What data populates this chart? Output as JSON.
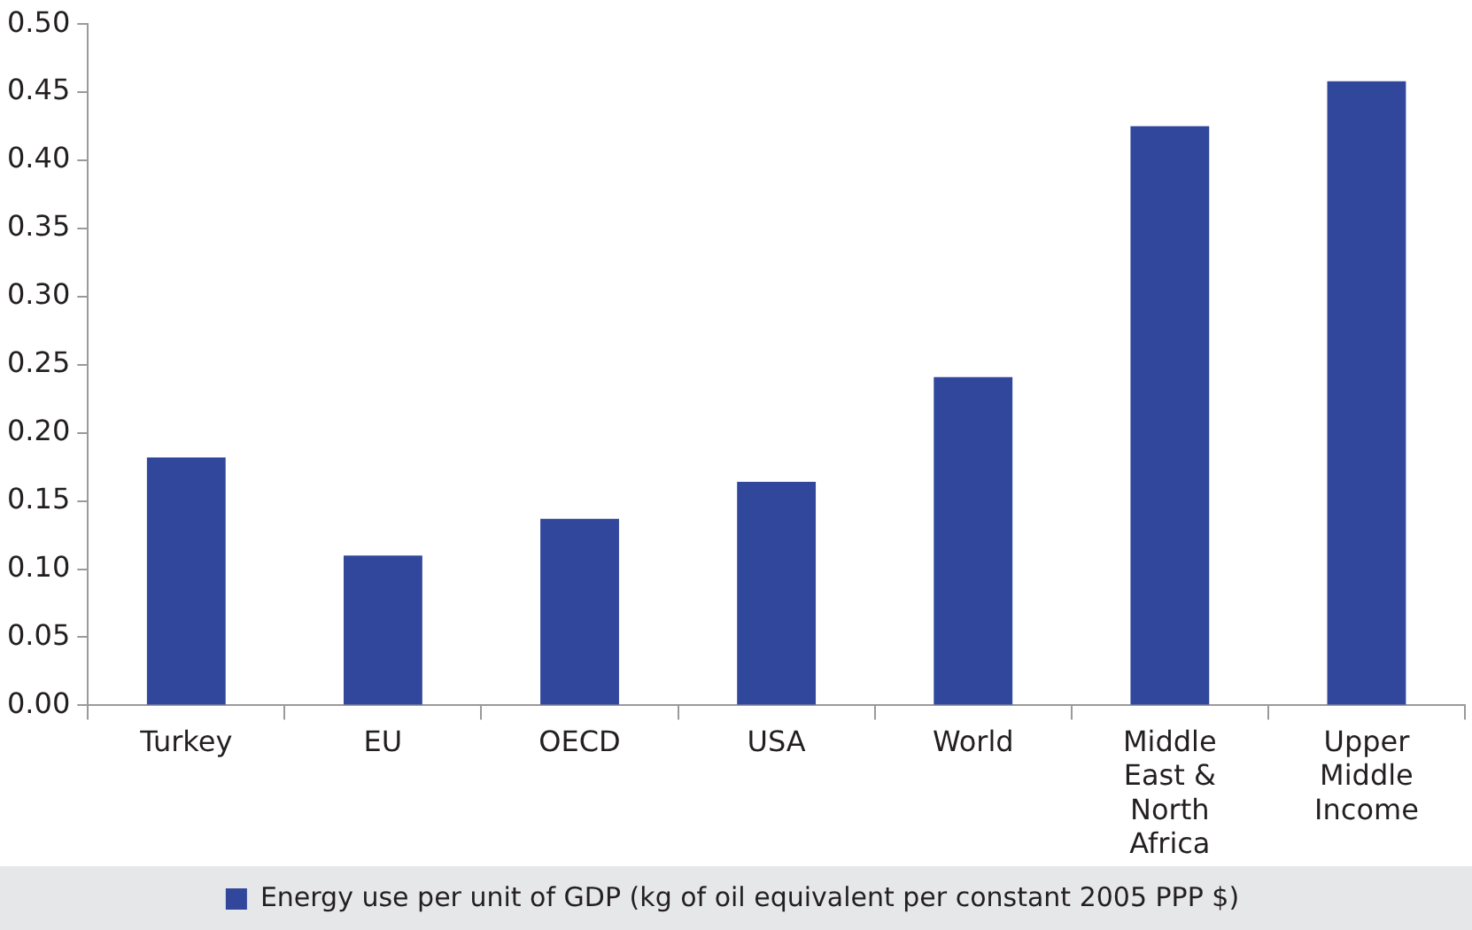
{
  "chart_data": {
    "type": "bar",
    "categories": [
      "Turkey",
      "EU",
      "OECD",
      "USA",
      "World",
      "Middle East & North Africa",
      "Upper Middle Income"
    ],
    "series": [
      {
        "name": "Energy use per unit of GDP (kg of oil equivalent per constant 2005 PPP $)",
        "color": "#31479c",
        "values": [
          0.182,
          0.11,
          0.137,
          0.164,
          0.241,
          0.425,
          0.458
        ]
      }
    ],
    "ylim": [
      0,
      0.5
    ],
    "yticks": [
      {
        "value": 0,
        "label": "0.00"
      },
      {
        "value": 0.05,
        "label": "0.05"
      },
      {
        "value": 0.1,
        "label": "0.10"
      },
      {
        "value": 0.15,
        "label": "0.15"
      },
      {
        "value": 0.2,
        "label": "0.20"
      },
      {
        "value": 0.25,
        "label": "0.25"
      },
      {
        "value": 0.3,
        "label": "0.30"
      },
      {
        "value": 0.35,
        "label": "0.35"
      },
      {
        "value": 0.4,
        "label": "0.40"
      },
      {
        "value": 0.45,
        "label": "0.45"
      },
      {
        "value": 0.5,
        "label": "0.50"
      }
    ],
    "grid": false,
    "legend": "bottom"
  }
}
